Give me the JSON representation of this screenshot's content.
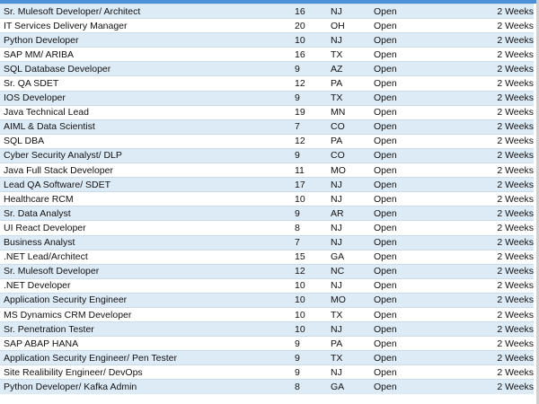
{
  "rows": [
    {
      "title": "Sr. Mulesoft Developer/ Architect",
      "count": "16",
      "state": "NJ",
      "status": "Open",
      "duration": "2 Weeks"
    },
    {
      "title": "IT Services Delivery Manager",
      "count": "20",
      "state": "OH",
      "status": "Open",
      "duration": "2 Weeks"
    },
    {
      "title": "Python Developer",
      "count": "10",
      "state": "NJ",
      "status": "Open",
      "duration": "2 Weeks"
    },
    {
      "title": "SAP MM/ ARIBA",
      "count": "16",
      "state": "TX",
      "status": "Open",
      "duration": "2 Weeks"
    },
    {
      "title": "SQL Database Developer",
      "count": "9",
      "state": "AZ",
      "status": "Open",
      "duration": "2 Weeks"
    },
    {
      "title": "Sr. QA SDET",
      "count": "12",
      "state": "PA",
      "status": "Open",
      "duration": "2 Weeks"
    },
    {
      "title": "IOS Developer",
      "count": "9",
      "state": "TX",
      "status": "Open",
      "duration": "2 Weeks"
    },
    {
      "title": "Java Technical Lead",
      "count": "19",
      "state": "MN",
      "status": "Open",
      "duration": "2 Weeks"
    },
    {
      "title": "AIML & Data Scientist",
      "count": "7",
      "state": "CO",
      "status": "Open",
      "duration": "2 Weeks"
    },
    {
      "title": "SQL DBA",
      "count": "12",
      "state": "PA",
      "status": "Open",
      "duration": "2 Weeks"
    },
    {
      "title": "Cyber Security Analyst/ DLP",
      "count": "9",
      "state": "CO",
      "status": "Open",
      "duration": "2 Weeks"
    },
    {
      "title": "Java Full Stack Developer",
      "count": "11",
      "state": "MO",
      "status": "Open",
      "duration": "2 Weeks"
    },
    {
      "title": "Lead QA Software/ SDET",
      "count": "17",
      "state": "NJ",
      "status": "Open",
      "duration": "2 Weeks"
    },
    {
      "title": "Healthcare RCM",
      "count": "10",
      "state": "NJ",
      "status": "Open",
      "duration": "2 Weeks"
    },
    {
      "title": "Sr. Data Analyst",
      "count": "9",
      "state": "AR",
      "status": "Open",
      "duration": "2 Weeks"
    },
    {
      "title": "UI React Developer",
      "count": "8",
      "state": "NJ",
      "status": "Open",
      "duration": "2 Weeks"
    },
    {
      "title": "Business Analyst",
      "count": "7",
      "state": "NJ",
      "status": "Open",
      "duration": "2 Weeks"
    },
    {
      "title": ".NET Lead/Architect",
      "count": "15",
      "state": "GA",
      "status": "Open",
      "duration": "2 Weeks"
    },
    {
      "title": "Sr. Mulesoft Developer",
      "count": "12",
      "state": "NC",
      "status": "Open",
      "duration": "2 Weeks"
    },
    {
      "title": ".NET Developer",
      "count": "10",
      "state": "NJ",
      "status": "Open",
      "duration": "2 Weeks"
    },
    {
      "title": "Application Security Engineer",
      "count": "10",
      "state": "MO",
      "status": "Open",
      "duration": "2 Weeks"
    },
    {
      "title": "MS Dynamics CRM Developer",
      "count": "10",
      "state": "TX",
      "status": "Open",
      "duration": "2 Weeks"
    },
    {
      "title": "Sr. Penetration Tester",
      "count": "10",
      "state": "NJ",
      "status": "Open",
      "duration": "2 Weeks"
    },
    {
      "title": "SAP ABAP HANA",
      "count": "9",
      "state": "PA",
      "status": "Open",
      "duration": "2 Weeks"
    },
    {
      "title": "Application Security Engineer/ Pen Tester",
      "count": "9",
      "state": "TX",
      "status": "Open",
      "duration": "2 Weeks"
    },
    {
      "title": "Site Realibility Engineer/ DevOps",
      "count": "9",
      "state": "NJ",
      "status": "Open",
      "duration": "2 Weeks"
    },
    {
      "title": "Python Developer/ Kafka Admin",
      "count": "8",
      "state": "GA",
      "status": "Open",
      "duration": "2 Weeks"
    }
  ],
  "colors": {
    "header_accent": "#4a90d9",
    "row_stripe": "#ddebf7",
    "row_plain": "#ffffff",
    "row_border": "#c9dceb"
  }
}
